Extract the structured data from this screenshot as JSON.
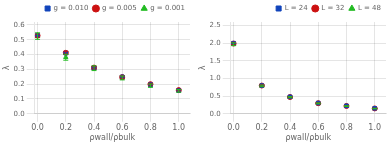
{
  "chart_data": [
    {
      "type": "scatter",
      "xlabel": "ρwall/ρbulk",
      "ylabel": "λ",
      "x": [
        0.0,
        0.2,
        0.4,
        0.6,
        0.8,
        1.0
      ],
      "series": [
        {
          "name": "g = 0.010",
          "color": "#1144bb",
          "marker": "square",
          "values": [
            0.53,
            0.41,
            0.31,
            0.25,
            0.198,
            0.158
          ],
          "errors": [
            0.008,
            0.01,
            0.008,
            0.007,
            0.006,
            0.005
          ]
        },
        {
          "name": "g = 0.005",
          "color": "#cc1111",
          "marker": "circle",
          "values": [
            0.528,
            0.412,
            0.312,
            0.248,
            0.2,
            0.16
          ],
          "errors": [
            0.01,
            0.01,
            0.009,
            0.008,
            0.006,
            0.006
          ]
        },
        {
          "name": "g = 0.001",
          "color": "#22bb22",
          "marker": "triangle",
          "values": [
            0.525,
            0.382,
            0.308,
            0.242,
            0.19,
            0.155
          ],
          "errors": [
            0.022,
            0.02,
            0.016,
            0.013,
            0.011,
            0.009
          ]
        }
      ],
      "xlim": [
        -0.02,
        1.08
      ],
      "ylim": [
        0.0,
        0.62
      ],
      "xticks": [
        {
          "value": 0,
          "label": "0.0"
        },
        0.2,
        0.4,
        0.6,
        0.8,
        {
          "value": 1,
          "label": "1.0"
        }
      ],
      "yticks": [
        {
          "value": 0,
          "label": "0.0"
        },
        0.1,
        0.2,
        0.3,
        0.4,
        0.5,
        0.6
      ],
      "grid": true,
      "legend": "upper right"
    },
    {
      "type": "scatter",
      "xlabel": "ρwall/ρbulk",
      "ylabel": "λ",
      "x": [
        0.0,
        0.2,
        0.4,
        0.6,
        0.8,
        1.0
      ],
      "series": [
        {
          "name": "L = 24",
          "color": "#1144bb",
          "marker": "square",
          "values": [
            2.0,
            0.8,
            0.48,
            0.305,
            0.225,
            0.155
          ],
          "errors": [
            0.03,
            0.018,
            0.012,
            0.009,
            0.007,
            0.006
          ]
        },
        {
          "name": "L = 32",
          "color": "#cc1111",
          "marker": "circle",
          "values": [
            1.99,
            0.8,
            0.475,
            0.3,
            0.222,
            0.152
          ],
          "errors": [
            0.035,
            0.02,
            0.013,
            0.01,
            0.008,
            0.006
          ]
        },
        {
          "name": "L = 48",
          "color": "#22bb22",
          "marker": "triangle",
          "values": [
            1.97,
            0.79,
            0.47,
            0.295,
            0.218,
            0.148
          ],
          "errors": [
            0.04,
            0.022,
            0.016,
            0.012,
            0.009,
            0.007
          ]
        }
      ],
      "xlim": [
        -0.02,
        1.08
      ],
      "ylim": [
        0.0,
        2.6
      ],
      "xticks": [
        {
          "value": 0,
          "label": "0.0"
        },
        0.2,
        0.4,
        0.6,
        0.8,
        {
          "value": 1,
          "label": "1.0"
        }
      ],
      "yticks": [
        {
          "value": 0,
          "label": "0.0"
        },
        0.5,
        {
          "value": 1,
          "label": "1.0"
        },
        1.5,
        {
          "value": 2,
          "label": "2.0"
        },
        2.5
      ],
      "grid": true,
      "legend": "upper right"
    }
  ]
}
